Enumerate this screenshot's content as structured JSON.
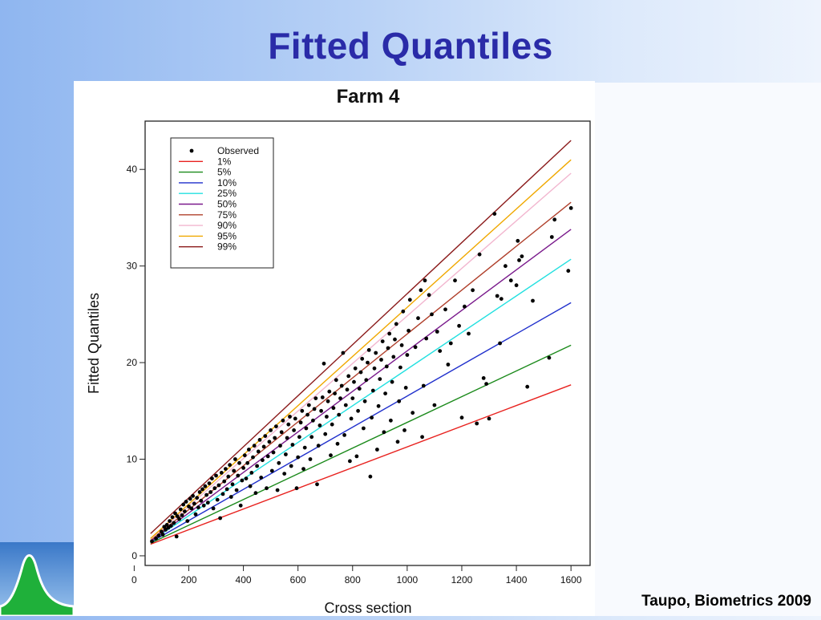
{
  "slide": {
    "title": "Fitted Quantiles",
    "citation": "Taupo, Biometrics 2009",
    "logo_icon": "bell-curve-logo-icon"
  },
  "colors": {
    "title": "#2a2ba8",
    "observed": "#000000"
  },
  "chart_data": {
    "type": "scatter",
    "title": "Farm 4",
    "xlabel": "Cross section",
    "ylabel": "Fitted Quantiles",
    "xlim": [
      40,
      1670
    ],
    "ylim": [
      -1,
      45
    ],
    "xticks": [
      0,
      200,
      400,
      600,
      800,
      1000,
      1200,
      1400,
      1600
    ],
    "yticks": [
      0,
      10,
      20,
      30,
      40
    ],
    "legend_position": "top-left",
    "grid": false,
    "observed": {
      "name": "Observed",
      "points": [
        [
          65,
          1.5
        ],
        [
          80,
          1.8
        ],
        [
          90,
          2.1
        ],
        [
          100,
          2.5
        ],
        [
          105,
          2.2
        ],
        [
          110,
          3.0
        ],
        [
          115,
          2.7
        ],
        [
          120,
          3.2
        ],
        [
          125,
          2.9
        ],
        [
          130,
          3.6
        ],
        [
          135,
          3.1
        ],
        [
          140,
          4.0
        ],
        [
          145,
          3.4
        ],
        [
          150,
          4.4
        ],
        [
          155,
          2.0
        ],
        [
          158,
          4.1
        ],
        [
          165,
          3.8
        ],
        [
          170,
          4.8
        ],
        [
          175,
          4.2
        ],
        [
          180,
          5.3
        ],
        [
          185,
          4.6
        ],
        [
          190,
          5.6
        ],
        [
          195,
          3.6
        ],
        [
          200,
          5.1
        ],
        [
          205,
          5.9
        ],
        [
          210,
          4.9
        ],
        [
          215,
          6.2
        ],
        [
          220,
          5.4
        ],
        [
          225,
          4.3
        ],
        [
          230,
          6.0
        ],
        [
          235,
          5.0
        ],
        [
          240,
          6.6
        ],
        [
          245,
          5.7
        ],
        [
          250,
          6.9
        ],
        [
          255,
          5.2
        ],
        [
          260,
          7.2
        ],
        [
          265,
          6.3
        ],
        [
          270,
          5.5
        ],
        [
          275,
          7.5
        ],
        [
          280,
          6.6
        ],
        [
          285,
          8.0
        ],
        [
          290,
          4.9
        ],
        [
          295,
          7.0
        ],
        [
          300,
          8.3
        ],
        [
          305,
          5.8
        ],
        [
          310,
          7.3
        ],
        [
          315,
          3.9
        ],
        [
          320,
          8.6
        ],
        [
          325,
          6.4
        ],
        [
          330,
          7.7
        ],
        [
          335,
          9.0
        ],
        [
          340,
          6.9
        ],
        [
          345,
          8.2
        ],
        [
          350,
          9.4
        ],
        [
          355,
          6.1
        ],
        [
          360,
          7.4
        ],
        [
          365,
          8.8
        ],
        [
          370,
          10.0
        ],
        [
          375,
          6.8
        ],
        [
          380,
          8.3
        ],
        [
          385,
          9.6
        ],
        [
          390,
          5.2
        ],
        [
          395,
          7.8
        ],
        [
          400,
          9.1
        ],
        [
          405,
          10.4
        ],
        [
          410,
          8.0
        ],
        [
          415,
          9.6
        ],
        [
          420,
          11.0
        ],
        [
          425,
          7.2
        ],
        [
          430,
          8.6
        ],
        [
          435,
          10.2
        ],
        [
          440,
          11.4
        ],
        [
          445,
          6.5
        ],
        [
          450,
          9.3
        ],
        [
          455,
          10.8
        ],
        [
          460,
          12.0
        ],
        [
          465,
          8.1
        ],
        [
          470,
          9.9
        ],
        [
          475,
          11.3
        ],
        [
          480,
          12.4
        ],
        [
          485,
          7.0
        ],
        [
          490,
          10.3
        ],
        [
          495,
          11.8
        ],
        [
          500,
          13.0
        ],
        [
          505,
          8.8
        ],
        [
          510,
          10.7
        ],
        [
          515,
          12.2
        ],
        [
          520,
          13.4
        ],
        [
          525,
          6.8
        ],
        [
          530,
          9.6
        ],
        [
          535,
          11.4
        ],
        [
          540,
          12.8
        ],
        [
          545,
          14.0
        ],
        [
          550,
          8.5
        ],
        [
          555,
          10.5
        ],
        [
          560,
          12.2
        ],
        [
          565,
          13.6
        ],
        [
          570,
          14.4
        ],
        [
          575,
          9.3
        ],
        [
          580,
          11.5
        ],
        [
          585,
          13.0
        ],
        [
          590,
          14.2
        ],
        [
          595,
          7.0
        ],
        [
          600,
          10.2
        ],
        [
          605,
          12.3
        ],
        [
          610,
          13.8
        ],
        [
          615,
          15.0
        ],
        [
          620,
          9.0
        ],
        [
          625,
          11.2
        ],
        [
          630,
          13.2
        ],
        [
          635,
          14.6
        ],
        [
          640,
          15.6
        ],
        [
          645,
          10.0
        ],
        [
          650,
          12.3
        ],
        [
          655,
          14.0
        ],
        [
          660,
          15.2
        ],
        [
          665,
          16.3
        ],
        [
          670,
          7.4
        ],
        [
          675,
          11.4
        ],
        [
          680,
          13.5
        ],
        [
          685,
          15.0
        ],
        [
          690,
          16.4
        ],
        [
          695,
          19.9
        ],
        [
          700,
          12.6
        ],
        [
          705,
          14.4
        ],
        [
          710,
          16.0
        ],
        [
          715,
          17.0
        ],
        [
          720,
          10.4
        ],
        [
          725,
          13.6
        ],
        [
          730,
          15.3
        ],
        [
          735,
          16.8
        ],
        [
          740,
          18.2
        ],
        [
          745,
          11.6
        ],
        [
          750,
          14.6
        ],
        [
          755,
          16.3
        ],
        [
          760,
          17.6
        ],
        [
          765,
          21.0
        ],
        [
          770,
          12.5
        ],
        [
          775,
          15.6
        ],
        [
          780,
          17.2
        ],
        [
          785,
          18.6
        ],
        [
          790,
          9.8
        ],
        [
          795,
          14.2
        ],
        [
          800,
          16.3
        ],
        [
          805,
          18.0
        ],
        [
          810,
          19.4
        ],
        [
          815,
          10.3
        ],
        [
          820,
          15.0
        ],
        [
          825,
          17.3
        ],
        [
          830,
          19.0
        ],
        [
          835,
          20.4
        ],
        [
          840,
          13.2
        ],
        [
          845,
          16.0
        ],
        [
          850,
          18.2
        ],
        [
          855,
          20.0
        ],
        [
          860,
          21.3
        ],
        [
          865,
          8.2
        ],
        [
          870,
          14.3
        ],
        [
          875,
          17.1
        ],
        [
          880,
          19.4
        ],
        [
          885,
          21.0
        ],
        [
          890,
          11.0
        ],
        [
          895,
          15.5
        ],
        [
          900,
          18.3
        ],
        [
          905,
          20.3
        ],
        [
          910,
          22.2
        ],
        [
          915,
          12.8
        ],
        [
          920,
          16.8
        ],
        [
          925,
          19.6
        ],
        [
          930,
          21.5
        ],
        [
          935,
          23.0
        ],
        [
          940,
          14.0
        ],
        [
          945,
          18.0
        ],
        [
          950,
          20.6
        ],
        [
          955,
          22.4
        ],
        [
          960,
          24.0
        ],
        [
          965,
          11.8
        ],
        [
          970,
          16.0
        ],
        [
          975,
          19.5
        ],
        [
          980,
          21.8
        ],
        [
          985,
          25.3
        ],
        [
          990,
          13.0
        ],
        [
          995,
          17.4
        ],
        [
          1000,
          20.8
        ],
        [
          1005,
          23.3
        ],
        [
          1010,
          26.5
        ],
        [
          1020,
          14.8
        ],
        [
          1030,
          21.6
        ],
        [
          1040,
          24.6
        ],
        [
          1050,
          27.5
        ],
        [
          1055,
          12.3
        ],
        [
          1060,
          17.6
        ],
        [
          1065,
          28.5
        ],
        [
          1070,
          22.5
        ],
        [
          1080,
          27.0
        ],
        [
          1090,
          25.0
        ],
        [
          1100,
          15.6
        ],
        [
          1110,
          23.2
        ],
        [
          1120,
          21.2
        ],
        [
          1140,
          25.5
        ],
        [
          1150,
          19.8
        ],
        [
          1160,
          22.0
        ],
        [
          1175,
          28.5
        ],
        [
          1190,
          23.8
        ],
        [
          1200,
          14.3
        ],
        [
          1210,
          25.8
        ],
        [
          1225,
          23.0
        ],
        [
          1240,
          27.5
        ],
        [
          1255,
          13.7
        ],
        [
          1265,
          31.2
        ],
        [
          1280,
          18.4
        ],
        [
          1290,
          17.8
        ],
        [
          1300,
          14.2
        ],
        [
          1320,
          35.4
        ],
        [
          1330,
          26.9
        ],
        [
          1340,
          22.0
        ],
        [
          1345,
          26.6
        ],
        [
          1360,
          30.0
        ],
        [
          1380,
          28.5
        ],
        [
          1400,
          28.0
        ],
        [
          1405,
          32.6
        ],
        [
          1410,
          30.6
        ],
        [
          1420,
          31.0
        ],
        [
          1440,
          17.5
        ],
        [
          1460,
          26.4
        ],
        [
          1520,
          20.5
        ],
        [
          1530,
          33.0
        ],
        [
          1540,
          34.8
        ],
        [
          1590,
          29.5
        ],
        [
          1600,
          36.0
        ]
      ]
    },
    "series": [
      {
        "name": "1%",
        "color": "#e8221f",
        "x": [
          60,
          1600
        ],
        "y": [
          1.2,
          17.7
        ]
      },
      {
        "name": "5%",
        "color": "#1b8a1b",
        "x": [
          60,
          1600
        ],
        "y": [
          1.3,
          21.8
        ]
      },
      {
        "name": "10%",
        "color": "#1f2fcc",
        "x": [
          60,
          1600
        ],
        "y": [
          1.4,
          26.2
        ]
      },
      {
        "name": "25%",
        "color": "#22e0e0",
        "x": [
          60,
          1600
        ],
        "y": [
          1.5,
          30.7
        ]
      },
      {
        "name": "50%",
        "color": "#7a1a8c",
        "x": [
          60,
          1600
        ],
        "y": [
          1.5,
          33.8
        ]
      },
      {
        "name": "75%",
        "color": "#b0402c",
        "x": [
          60,
          1600
        ],
        "y": [
          1.6,
          36.6
        ]
      },
      {
        "name": "90%",
        "color": "#f2b6cf",
        "x": [
          60,
          1600
        ],
        "y": [
          1.7,
          39.6
        ]
      },
      {
        "name": "95%",
        "color": "#f0a800",
        "x": [
          60,
          1600
        ],
        "y": [
          1.8,
          41.0
        ]
      },
      {
        "name": "99%",
        "color": "#8b1b1b",
        "x": [
          60,
          1600
        ],
        "y": [
          2.3,
          43.0
        ]
      }
    ]
  }
}
